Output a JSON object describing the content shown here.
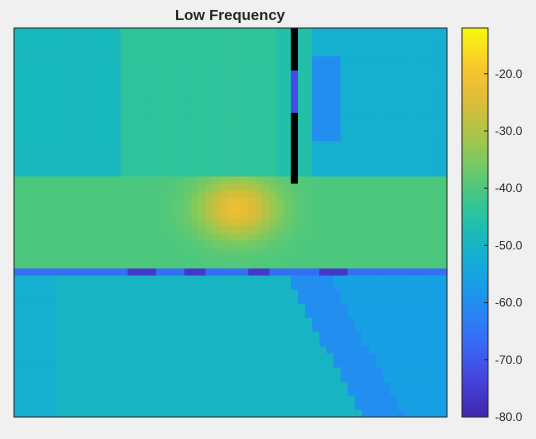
{
  "chart_data": {
    "type": "heatmap",
    "title": "Low Frequency",
    "colormap": "parula",
    "color_range": [
      -80,
      -12
    ],
    "colorbar_ticks": [
      {
        "value": -20,
        "label": "-20.0"
      },
      {
        "value": -30,
        "label": "-30.0"
      },
      {
        "value": -40,
        "label": "-40.0"
      },
      {
        "value": -50,
        "label": "-50.0"
      },
      {
        "value": -60,
        "label": "-60.0"
      },
      {
        "value": -70,
        "label": "-70.0"
      },
      {
        "value": -80,
        "label": "-80.0"
      }
    ],
    "grid_cols": 61,
    "grid_rows": 55,
    "missing_color": "#000000",
    "features": {
      "hot_spot": {
        "col": 31,
        "row": 25,
        "peak": -22
      },
      "low_row": {
        "row": 34,
        "value": -66
      },
      "dark_spots_in_low_row": [
        16,
        17,
        18,
        19,
        24,
        25,
        26,
        33,
        34,
        35,
        43,
        44,
        45,
        46
      ],
      "missing_column": {
        "col": 39,
        "rows_to": 21
      },
      "bright_band_rows": [
        21,
        33
      ]
    },
    "grid": false,
    "legend": "colorbar-right"
  }
}
